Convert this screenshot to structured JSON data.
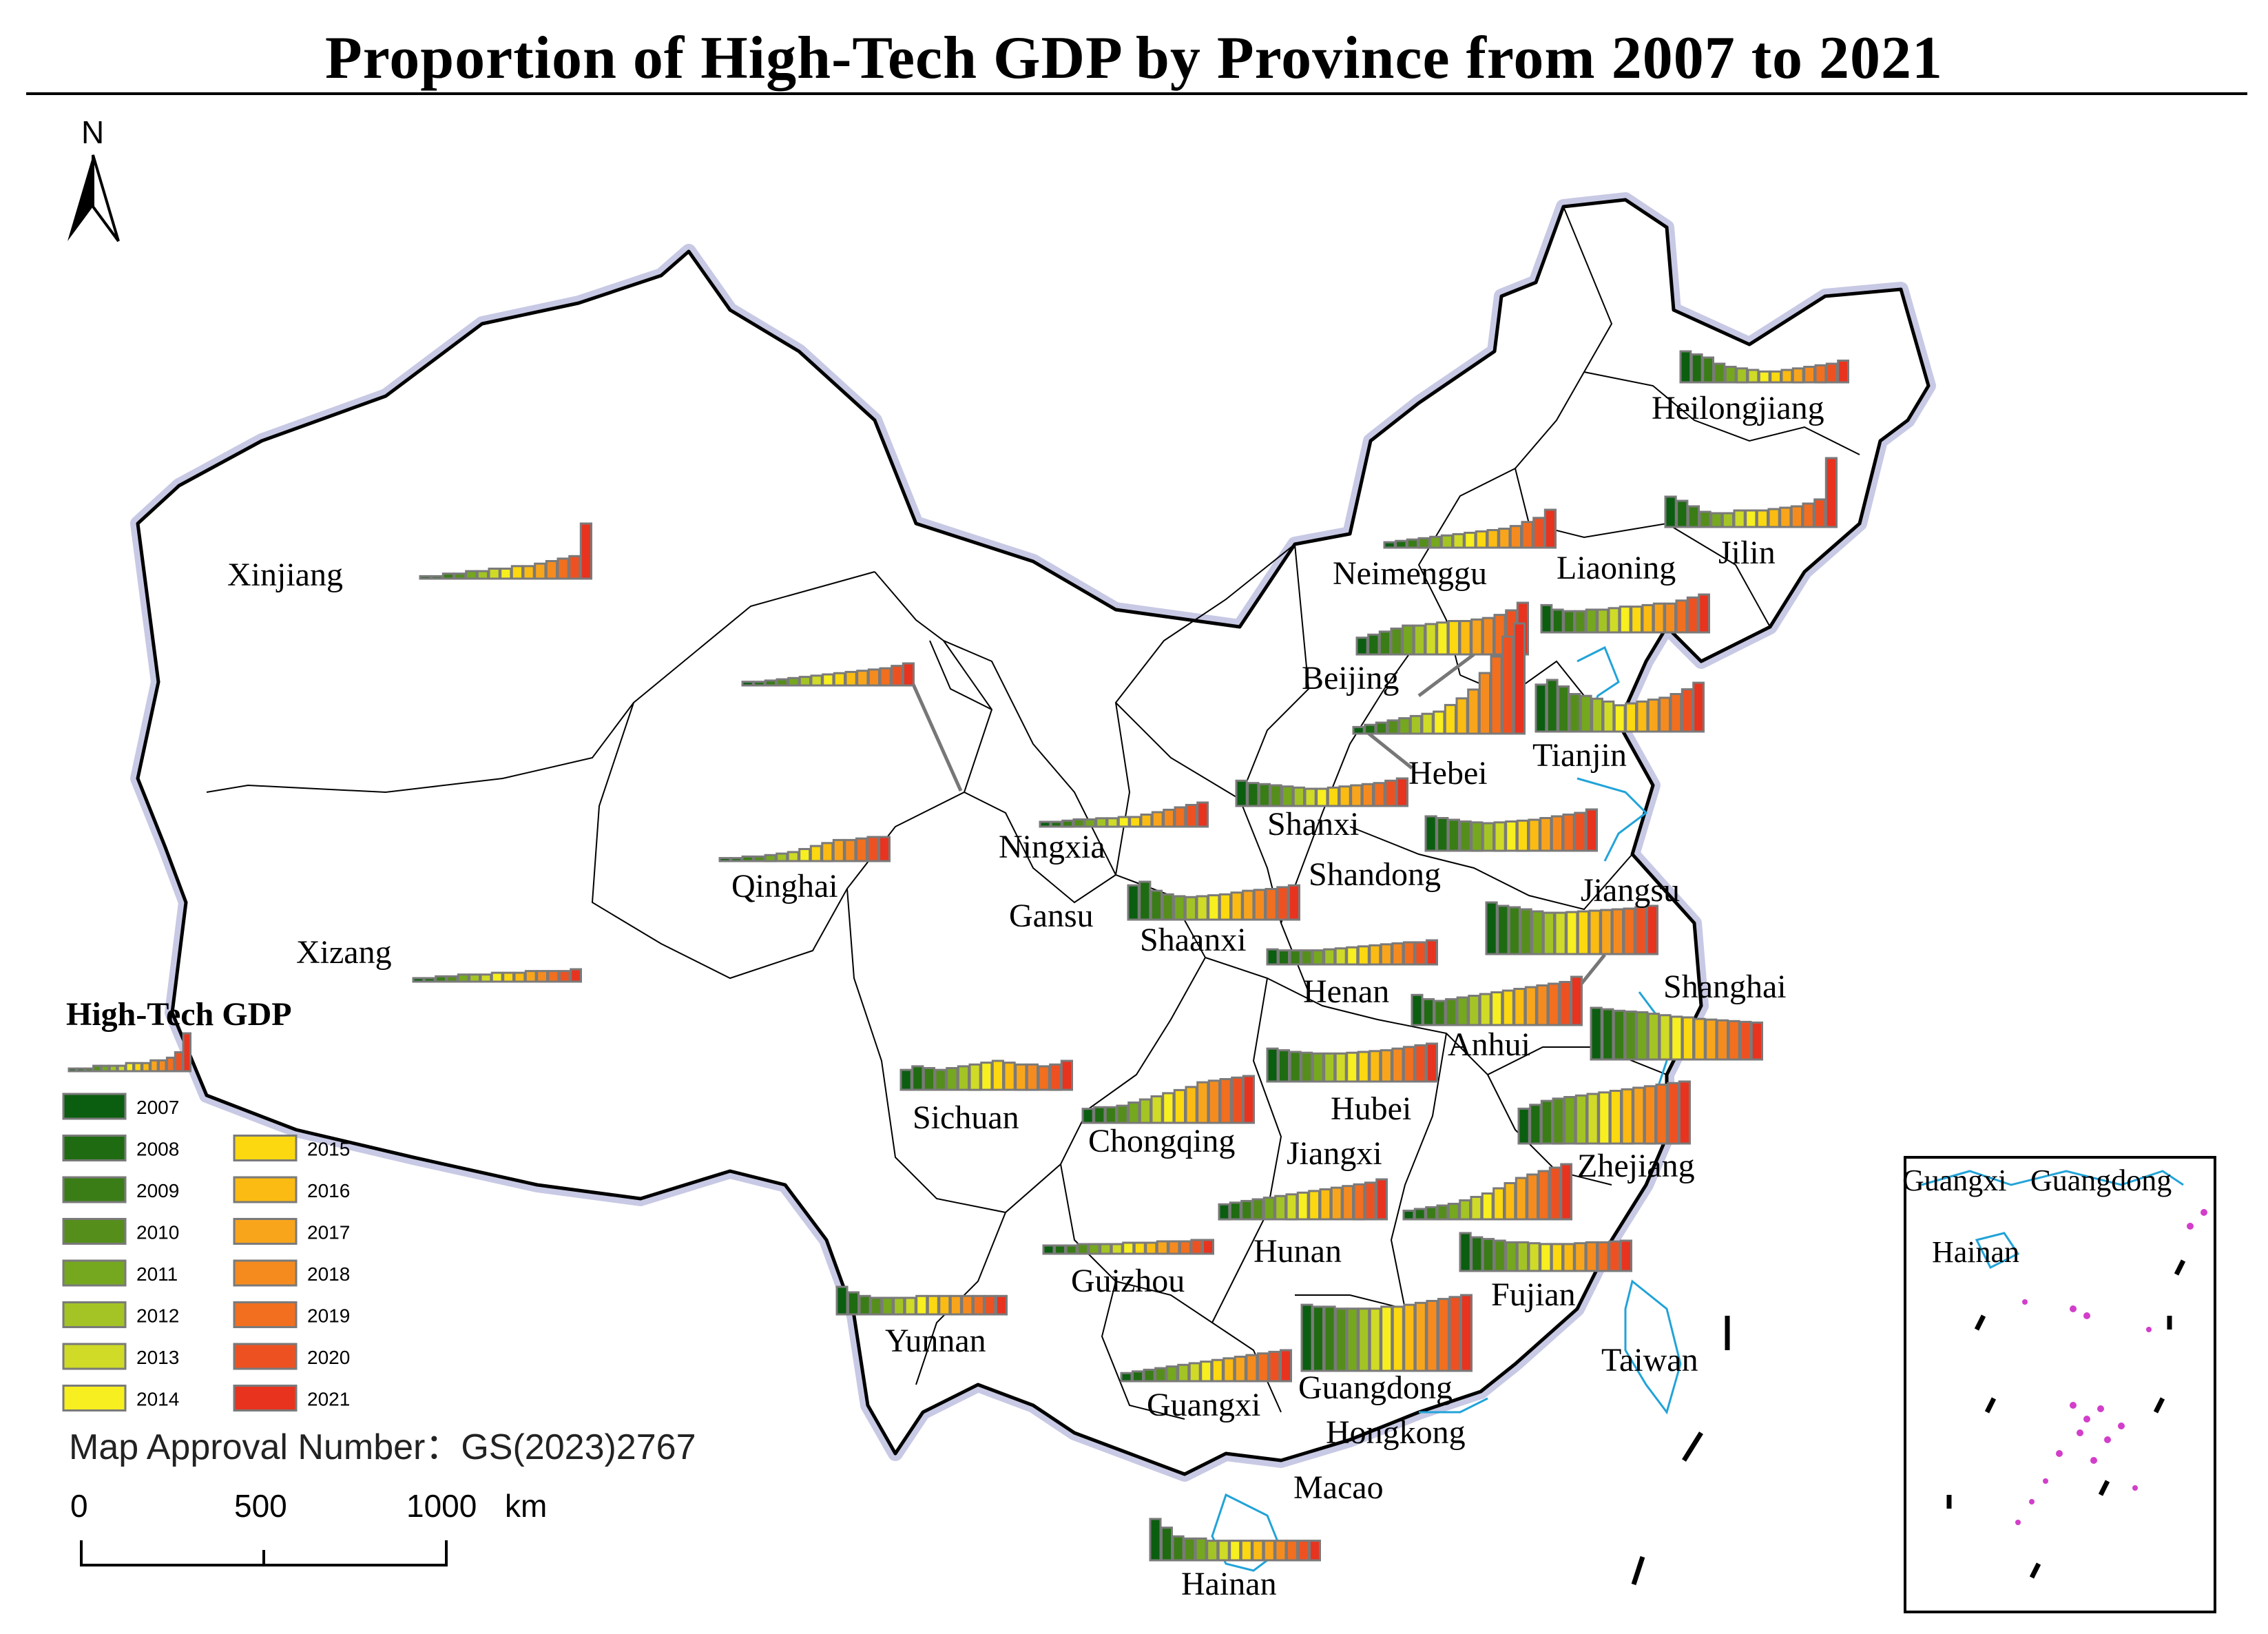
{
  "title": "Proportion of High-Tech GDP by Province from 2007 to 2021",
  "north_arrow": "N",
  "approval_number": "Map Approval Number：GS(2023)2767",
  "scale_bar": {
    "ticks": [
      "0",
      "500",
      "1000"
    ],
    "unit": "km"
  },
  "legend": {
    "title": "High-Tech GDP",
    "years": [
      "2007",
      "2008",
      "2009",
      "2010",
      "2011",
      "2012",
      "2013",
      "2014",
      "2015",
      "2016",
      "2017",
      "2018",
      "2019",
      "2020",
      "2021"
    ],
    "colors": [
      "#0b5e10",
      "#1f6b12",
      "#3a7d16",
      "#558e1b",
      "#75a81f",
      "#a3c424",
      "#cfdb26",
      "#f7ef1f",
      "#fbd80f",
      "#fbbb12",
      "#f9a51b",
      "#f58b1f",
      "#f16f1f",
      "#ee5121",
      "#e8331f"
    ]
  },
  "provinces": [
    {
      "name": "Xinjiang",
      "values": [
        1,
        1,
        2,
        2,
        3,
        3,
        4,
        4,
        5,
        5,
        6,
        7,
        8,
        9,
        22
      ]
    },
    {
      "name": "Heilongjiang",
      "values": [
        20,
        18,
        16,
        12,
        10,
        9,
        8,
        7,
        7,
        8,
        9,
        10,
        11,
        12,
        14
      ]
    },
    {
      "name": "Jilin",
      "values": [
        22,
        19,
        15,
        11,
        10,
        10,
        12,
        12,
        12,
        13,
        14,
        15,
        17,
        20,
        50
      ]
    },
    {
      "name": "Neimenggu",
      "values": [
        4,
        5,
        6,
        7,
        8,
        9,
        10,
        11,
        12,
        13,
        14,
        16,
        19,
        22,
        28
      ]
    },
    {
      "name": "Liaoning",
      "values": [
        18,
        15,
        14,
        14,
        15,
        15,
        16,
        17,
        17,
        18,
        19,
        19,
        21,
        23,
        25
      ]
    },
    {
      "name": "Beijing",
      "values": [
        22,
        26,
        30,
        34,
        38,
        38,
        40,
        42,
        44,
        44,
        46,
        48,
        52,
        58,
        68
      ]
    },
    {
      "name": "Tianjin",
      "values": [
        50,
        55,
        48,
        40,
        38,
        35,
        32,
        28,
        30,
        32,
        34,
        36,
        40,
        45,
        52
      ]
    },
    {
      "name": "Hebei",
      "values": [
        6,
        8,
        10,
        12,
        14,
        16,
        18,
        20,
        26,
        32,
        40,
        55,
        70,
        88,
        100
      ]
    },
    {
      "name": "Ningxia",
      "values": [
        4,
        4,
        5,
        6,
        6,
        7,
        7,
        8,
        8,
        10,
        12,
        14,
        16,
        18,
        20
      ]
    },
    {
      "name": "Qinghai",
      "values": [
        2,
        2,
        3,
        3,
        4,
        5,
        6,
        8,
        10,
        12,
        14,
        14,
        15,
        16,
        16
      ]
    },
    {
      "name": "Gansu",
      "values": [
        3,
        3,
        4,
        5,
        6,
        7,
        8,
        9,
        10,
        11,
        12,
        13,
        14,
        16,
        18
      ]
    },
    {
      "name": "Shanxi",
      "values": [
        22,
        20,
        19,
        18,
        17,
        16,
        15,
        15,
        16,
        17,
        18,
        19,
        20,
        22,
        24
      ]
    },
    {
      "name": "Shandong",
      "values": [
        40,
        38,
        36,
        34,
        33,
        32,
        33,
        34,
        35,
        36,
        38,
        40,
        42,
        44,
        48
      ]
    },
    {
      "name": "Jiangsu",
      "values": [
        75,
        70,
        68,
        65,
        62,
        60,
        60,
        61,
        62,
        63,
        64,
        65,
        66,
        68,
        70
      ]
    },
    {
      "name": "Shaanxi",
      "values": [
        38,
        42,
        32,
        28,
        26,
        25,
        26,
        27,
        28,
        30,
        32,
        33,
        34,
        36,
        38
      ]
    },
    {
      "name": "Henan",
      "values": [
        15,
        14,
        14,
        14,
        14,
        15,
        16,
        17,
        18,
        19,
        20,
        21,
        22,
        22,
        24
      ]
    },
    {
      "name": "Shanghai",
      "values": [
        70,
        68,
        66,
        65,
        64,
        62,
        60,
        58,
        57,
        55,
        54,
        53,
        52,
        51,
        50
      ]
    },
    {
      "name": "Anhui",
      "values": [
        35,
        30,
        28,
        30,
        32,
        34,
        36,
        38,
        40,
        42,
        44,
        46,
        48,
        50,
        56
      ]
    },
    {
      "name": "Xizang",
      "values": [
        2,
        2,
        3,
        3,
        4,
        4,
        4,
        5,
        5,
        5,
        6,
        6,
        6,
        6,
        7
      ]
    },
    {
      "name": "Sichuan",
      "values": [
        22,
        26,
        24,
        22,
        24,
        26,
        28,
        30,
        32,
        30,
        28,
        28,
        26,
        28,
        32
      ]
    },
    {
      "name": "Chongqing",
      "values": [
        18,
        20,
        20,
        22,
        26,
        30,
        34,
        38,
        42,
        46,
        52,
        54,
        56,
        58,
        60
      ]
    },
    {
      "name": "Hubei",
      "values": [
        40,
        38,
        36,
        35,
        34,
        34,
        34,
        35,
        36,
        37,
        38,
        40,
        42,
        44,
        46
      ]
    },
    {
      "name": "Zhejiang",
      "values": [
        45,
        50,
        55,
        58,
        60,
        62,
        64,
        66,
        68,
        70,
        72,
        74,
        76,
        78,
        80
      ]
    },
    {
      "name": "Jiangxi",
      "values": [
        10,
        12,
        14,
        16,
        18,
        22,
        26,
        30,
        36,
        42,
        48,
        52,
        56,
        60,
        64
      ]
    },
    {
      "name": "Hunan",
      "values": [
        18,
        20,
        22,
        24,
        26,
        28,
        30,
        32,
        34,
        36,
        38,
        40,
        42,
        44,
        48
      ]
    },
    {
      "name": "Guizhou",
      "values": [
        6,
        6,
        6,
        7,
        7,
        7,
        7,
        8,
        8,
        8,
        9,
        9,
        9,
        10,
        10
      ]
    },
    {
      "name": "Fujian",
      "values": [
        45,
        40,
        38,
        36,
        34,
        34,
        33,
        32,
        32,
        32,
        33,
        34,
        34,
        35,
        36
      ]
    },
    {
      "name": "Yunnan",
      "values": [
        30,
        24,
        20,
        18,
        18,
        18,
        18,
        20,
        20,
        20,
        20,
        20,
        20,
        20,
        20
      ]
    },
    {
      "name": "Guangdong",
      "values": [
        68,
        66,
        66,
        64,
        64,
        64,
        64,
        66,
        66,
        68,
        70,
        72,
        74,
        76,
        78
      ]
    },
    {
      "name": "Guangxi",
      "values": [
        10,
        12,
        14,
        16,
        18,
        20,
        22,
        24,
        26,
        28,
        30,
        32,
        34,
        36,
        38
      ]
    },
    {
      "name": "Hainan",
      "values": [
        38,
        30,
        22,
        20,
        20,
        18,
        18,
        18,
        18,
        18,
        18,
        18,
        18,
        18,
        18
      ]
    }
  ],
  "labels_only": [
    {
      "name": "Taiwan"
    },
    {
      "name": "Hongkong"
    },
    {
      "name": "Macao"
    }
  ],
  "inset": {
    "labels": [
      "Guangxi",
      "Guangdong",
      "Hainan"
    ]
  }
}
